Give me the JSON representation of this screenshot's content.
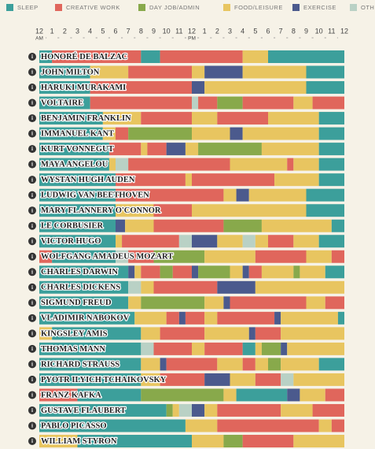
{
  "chart_data": {
    "type": "timeline",
    "series": [
      {
        "name": "SLEEP",
        "color": "#3c9f9b"
      },
      {
        "name": "CREATIVE WORK",
        "color": "#e0665c"
      },
      {
        "name": "DAY JOB/ADMIN",
        "color": "#88a94b"
      },
      {
        "name": "FOOD/LEISURE",
        "color": "#e8c560"
      },
      {
        "name": "EXERCISE",
        "color": "#4b5a8d"
      },
      {
        "name": "OTHER",
        "color": "#b9d1c5"
      }
    ],
    "xlim": [
      0,
      24
    ],
    "xticks": [
      {
        "value": 0,
        "label": "12"
      },
      1,
      2,
      3,
      4,
      5,
      6,
      7,
      8,
      9,
      10,
      11,
      12,
      {
        "value": 13,
        "label": "1"
      },
      {
        "value": 14,
        "label": "2"
      },
      {
        "value": 15,
        "label": "3"
      },
      {
        "value": 16,
        "label": "4"
      },
      {
        "value": 17,
        "label": "5"
      },
      {
        "value": 18,
        "label": "6"
      },
      {
        "value": 19,
        "label": "7"
      },
      {
        "value": 20,
        "label": "8"
      },
      {
        "value": 21,
        "label": "9"
      },
      {
        "value": 22,
        "label": "10"
      },
      {
        "value": 23,
        "label": "11"
      },
      {
        "value": 24,
        "label": "12"
      }
    ],
    "am_label": "AM",
    "pm_label": "PM",
    "rows": [
      {
        "name": "HONORÉ DE BALZAC",
        "segments": [
          [
            0,
            1,
            0
          ],
          [
            1,
            8,
            1
          ],
          [
            8,
            9.5,
            0
          ],
          [
            9.5,
            16,
            1
          ],
          [
            16,
            18,
            3
          ],
          [
            18,
            24,
            0
          ]
        ]
      },
      {
        "name": "JOHN MILTON",
        "segments": [
          [
            0,
            4,
            0
          ],
          [
            4,
            7,
            3
          ],
          [
            7,
            12,
            1
          ],
          [
            12,
            13,
            3
          ],
          [
            13,
            16,
            4
          ],
          [
            16,
            21,
            3
          ],
          [
            21,
            24,
            0
          ]
        ]
      },
      {
        "name": "HARUKI MURAKAMI",
        "segments": [
          [
            0,
            4,
            0
          ],
          [
            4,
            12,
            1
          ],
          [
            12,
            13,
            4
          ],
          [
            13,
            21,
            3
          ],
          [
            21,
            24,
            0
          ]
        ]
      },
      {
        "name": "VOLTAIRE",
        "segments": [
          [
            0,
            4,
            0
          ],
          [
            4,
            12,
            1
          ],
          [
            12,
            12.5,
            5
          ],
          [
            12.5,
            14,
            1
          ],
          [
            14,
            16,
            2
          ],
          [
            16,
            20,
            1
          ],
          [
            20,
            21.5,
            3
          ],
          [
            21.5,
            24,
            1
          ]
        ]
      },
      {
        "name": "BENJAMIN FRANKLIN",
        "segments": [
          [
            0,
            5,
            0
          ],
          [
            5,
            8,
            3
          ],
          [
            8,
            12,
            1
          ],
          [
            12,
            14,
            3
          ],
          [
            14,
            18,
            1
          ],
          [
            18,
            22,
            3
          ],
          [
            22,
            24,
            0
          ]
        ]
      },
      {
        "name": "IMMANUEL KANT",
        "segments": [
          [
            0,
            5,
            0
          ],
          [
            5,
            6,
            3
          ],
          [
            6,
            7,
            1
          ],
          [
            7,
            12,
            2
          ],
          [
            12,
            15,
            3
          ],
          [
            15,
            16,
            4
          ],
          [
            16,
            22,
            3
          ],
          [
            22,
            24,
            0
          ]
        ]
      },
      {
        "name": "KURT VONNEGUT",
        "segments": [
          [
            0,
            5.5,
            0
          ],
          [
            5.5,
            8,
            1
          ],
          [
            8,
            8.5,
            3
          ],
          [
            8.5,
            10,
            1
          ],
          [
            10,
            11.5,
            4
          ],
          [
            11.5,
            12.5,
            3
          ],
          [
            12.5,
            17.5,
            2
          ],
          [
            17.5,
            22,
            3
          ],
          [
            22,
            24,
            0
          ]
        ]
      },
      {
        "name": "MAYA ANGELOU",
        "segments": [
          [
            0,
            5.5,
            0
          ],
          [
            5.5,
            6,
            3
          ],
          [
            6,
            7,
            5
          ],
          [
            7,
            15,
            1
          ],
          [
            15,
            19.5,
            3
          ],
          [
            19.5,
            20,
            1
          ],
          [
            20,
            22,
            3
          ],
          [
            22,
            24,
            0
          ]
        ]
      },
      {
        "name": "WYSTAN HUGH AUDEN",
        "segments": [
          [
            0,
            6,
            0
          ],
          [
            6,
            11.5,
            1
          ],
          [
            11.5,
            12,
            3
          ],
          [
            12,
            18.5,
            1
          ],
          [
            18.5,
            22,
            3
          ],
          [
            22,
            24,
            0
          ]
        ]
      },
      {
        "name": "LUDWIG VAN BEETHOVEN",
        "segments": [
          [
            0,
            6,
            0
          ],
          [
            6,
            14.5,
            1
          ],
          [
            14.5,
            15.5,
            3
          ],
          [
            15.5,
            16.5,
            4
          ],
          [
            16.5,
            21,
            3
          ],
          [
            21,
            24,
            0
          ]
        ]
      },
      {
        "name": "MARY FLANNERY O'CONNOR",
        "segments": [
          [
            0,
            6,
            0
          ],
          [
            6,
            9,
            3
          ],
          [
            9,
            12,
            1
          ],
          [
            12,
            21,
            3
          ],
          [
            21,
            24,
            0
          ]
        ]
      },
      {
        "name": "LE CORBUSIER",
        "segments": [
          [
            0,
            6,
            0
          ],
          [
            6,
            6.75,
            4
          ],
          [
            6.75,
            9,
            3
          ],
          [
            9,
            14.5,
            1
          ],
          [
            14.5,
            17.5,
            2
          ],
          [
            17.5,
            23,
            3
          ],
          [
            23,
            24,
            0
          ]
        ]
      },
      {
        "name": "VICTOR HUGO",
        "segments": [
          [
            0,
            6,
            0
          ],
          [
            6,
            6.5,
            3
          ],
          [
            6.5,
            11,
            1
          ],
          [
            11,
            12,
            5
          ],
          [
            12,
            14,
            4
          ],
          [
            14,
            16,
            3
          ],
          [
            16,
            17,
            5
          ],
          [
            17,
            18,
            3
          ],
          [
            18,
            20,
            1
          ],
          [
            20,
            22,
            3
          ],
          [
            22,
            24,
            0
          ]
        ]
      },
      {
        "name": "WOLFGANG AMADEUS MOZART",
        "segments": [
          [
            0,
            1,
            1
          ],
          [
            1,
            6,
            0
          ],
          [
            6,
            7,
            5
          ],
          [
            7,
            9,
            1
          ],
          [
            9,
            13,
            2
          ],
          [
            13,
            17,
            3
          ],
          [
            17,
            21,
            1
          ],
          [
            21,
            23,
            3
          ],
          [
            23,
            24,
            1
          ]
        ]
      },
      {
        "name": "CHARLES DARWIN",
        "segments": [
          [
            0,
            7,
            0
          ],
          [
            7,
            7.5,
            4
          ],
          [
            7.5,
            8,
            3
          ],
          [
            8,
            9.5,
            1
          ],
          [
            9.5,
            10.5,
            2
          ],
          [
            10.5,
            12,
            1
          ],
          [
            12,
            12.5,
            4
          ],
          [
            12.5,
            15,
            2
          ],
          [
            15,
            16,
            3
          ],
          [
            16,
            16.5,
            4
          ],
          [
            16.5,
            17.5,
            1
          ],
          [
            17.5,
            20,
            3
          ],
          [
            20,
            20.5,
            2
          ],
          [
            20.5,
            22.5,
            3
          ],
          [
            22.5,
            24,
            0
          ]
        ]
      },
      {
        "name": "CHARLES DICKENS",
        "segments": [
          [
            0,
            7,
            0
          ],
          [
            7,
            8,
            5
          ],
          [
            8,
            9,
            3
          ],
          [
            9,
            14,
            1
          ],
          [
            14,
            17,
            4
          ],
          [
            17,
            24,
            3
          ]
        ]
      },
      {
        "name": "SIGMUND FREUD",
        "segments": [
          [
            0,
            7,
            0
          ],
          [
            7,
            8,
            3
          ],
          [
            8,
            13,
            2
          ],
          [
            13,
            14.5,
            3
          ],
          [
            14.5,
            15,
            4
          ],
          [
            15,
            21,
            1
          ],
          [
            21,
            22.5,
            3
          ],
          [
            22.5,
            24,
            1
          ]
        ]
      },
      {
        "name": "VLADIMIR NABOKOV",
        "segments": [
          [
            0,
            7.5,
            0
          ],
          [
            7.5,
            10,
            3
          ],
          [
            10,
            11,
            1
          ],
          [
            11,
            11.5,
            4
          ],
          [
            11.5,
            13,
            1
          ],
          [
            13,
            14,
            3
          ],
          [
            14,
            18.5,
            1
          ],
          [
            18.5,
            19,
            4
          ],
          [
            19,
            23.5,
            3
          ],
          [
            23.5,
            24,
            0
          ]
        ]
      },
      {
        "name": "KINGSLEY AMIS",
        "segments": [
          [
            0,
            1,
            3
          ],
          [
            1,
            8,
            0
          ],
          [
            8,
            9.5,
            3
          ],
          [
            9.5,
            13,
            1
          ],
          [
            13,
            16.5,
            3
          ],
          [
            16.5,
            17,
            4
          ],
          [
            17,
            19,
            1
          ],
          [
            19,
            24,
            3
          ]
        ]
      },
      {
        "name": "THOMAS MANN",
        "segments": [
          [
            0,
            8,
            0
          ],
          [
            8,
            9,
            5
          ],
          [
            9,
            12,
            1
          ],
          [
            12,
            13,
            3
          ],
          [
            13,
            16,
            1
          ],
          [
            16,
            17,
            0
          ],
          [
            17,
            17.5,
            3
          ],
          [
            17.5,
            19,
            2
          ],
          [
            19,
            19.5,
            4
          ],
          [
            19.5,
            24,
            3
          ]
        ]
      },
      {
        "name": "RICHARD STRAUSS",
        "segments": [
          [
            0,
            8,
            0
          ],
          [
            8,
            9.5,
            3
          ],
          [
            9.5,
            10,
            4
          ],
          [
            10,
            14,
            1
          ],
          [
            14,
            16,
            3
          ],
          [
            16,
            17,
            1
          ],
          [
            17,
            18,
            3
          ],
          [
            18,
            19,
            2
          ],
          [
            19,
            22,
            3
          ],
          [
            22,
            24,
            0
          ]
        ]
      },
      {
        "name": "PYOTR ILYICH TCHAIKOVSKY",
        "segments": [
          [
            0,
            8,
            0
          ],
          [
            8,
            9.5,
            3
          ],
          [
            9.5,
            13,
            1
          ],
          [
            13,
            15,
            4
          ],
          [
            15,
            17,
            3
          ],
          [
            17,
            19,
            1
          ],
          [
            19,
            20,
            5
          ],
          [
            20,
            24,
            3
          ]
        ]
      },
      {
        "name": "FRANZ KAFKA",
        "segments": [
          [
            0,
            3,
            1
          ],
          [
            3,
            8,
            0
          ],
          [
            8,
            14.5,
            2
          ],
          [
            14.5,
            15.5,
            3
          ],
          [
            15.5,
            19.5,
            0
          ],
          [
            19.5,
            20.5,
            4
          ],
          [
            20.5,
            22.5,
            3
          ],
          [
            22.5,
            24,
            1
          ]
        ]
      },
      {
        "name": "GUSTAVE FLAUBERT",
        "segments": [
          [
            0,
            10,
            0
          ],
          [
            10,
            10.5,
            2
          ],
          [
            10.5,
            11,
            3
          ],
          [
            11,
            12,
            5
          ],
          [
            12,
            13,
            4
          ],
          [
            13,
            14,
            3
          ],
          [
            14,
            19,
            1
          ],
          [
            19,
            21.5,
            3
          ],
          [
            21.5,
            24,
            1
          ]
        ]
      },
      {
        "name": "PABLO PICASSO",
        "segments": [
          [
            0,
            11.5,
            0
          ],
          [
            11.5,
            14,
            3
          ],
          [
            14,
            22,
            1
          ],
          [
            22,
            23,
            3
          ],
          [
            23,
            24,
            1
          ]
        ]
      },
      {
        "name": "WILLIAM STYRON",
        "segments": [
          [
            0,
            3,
            3
          ],
          [
            3,
            12,
            0
          ],
          [
            12,
            14.5,
            3
          ],
          [
            14.5,
            16,
            2
          ],
          [
            16,
            20,
            1
          ],
          [
            20,
            24,
            3
          ]
        ]
      }
    ],
    "grid": false
  }
}
